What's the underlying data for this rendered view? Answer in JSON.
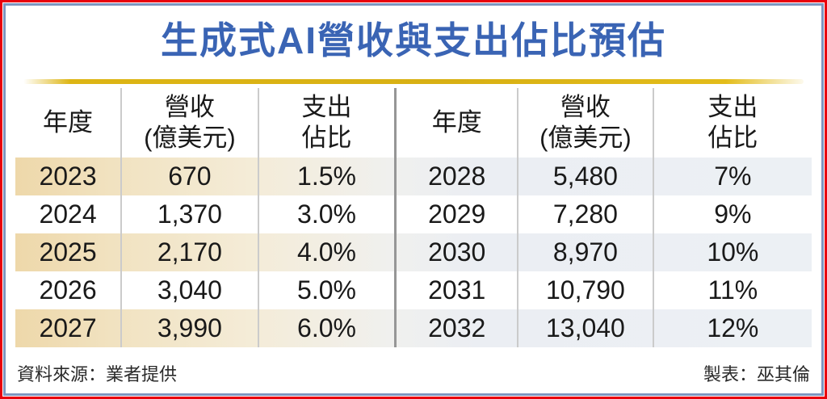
{
  "chart_data": {
    "type": "table",
    "title": "生成式AI營收與支出佔比預估",
    "columns": [
      "年度",
      "營收(億美元)",
      "支出佔比"
    ],
    "headers": {
      "year": "年度",
      "revenue": [
        "營收",
        "(億美元)"
      ],
      "ratio": [
        "支出",
        "佔比"
      ]
    },
    "layout": "two side-by-side panels sharing identical column headers; odd rows striped with tan-to-gray gradient",
    "panels": [
      {
        "rows": [
          [
            "2023",
            "670",
            "1.5%"
          ],
          [
            "2024",
            "1,370",
            "3.0%"
          ],
          [
            "2025",
            "2,170",
            "4.0%"
          ],
          [
            "2026",
            "3,040",
            "5.0%"
          ],
          [
            "2027",
            "3,990",
            "6.0%"
          ]
        ]
      },
      {
        "rows": [
          [
            "2028",
            "5,480",
            "7%"
          ],
          [
            "2029",
            "7,280",
            "9%"
          ],
          [
            "2030",
            "8,970",
            "10%"
          ],
          [
            "2031",
            "10,790",
            "11%"
          ],
          [
            "2032",
            "13,040",
            "12%"
          ]
        ]
      }
    ],
    "source": "資料來源：業者提供",
    "credit": "製表：巫其倫"
  },
  "colors": {
    "title_blue": "#3a64b4",
    "gold_rule": "#ddb514",
    "outer_border_red": "#e8000e",
    "inner_border_blue": "#7d96c0",
    "stripe_tan": "#eed8aa",
    "stripe_gray": "#ecf0f4",
    "column_divider": "#cbcbcb",
    "panel_divider": "#969696"
  }
}
